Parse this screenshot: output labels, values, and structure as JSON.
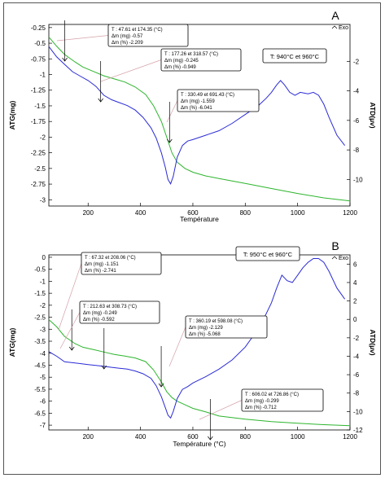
{
  "chart_data": [
    {
      "type": "line",
      "panel_label": "A",
      "legend_label": "Exo",
      "xlabel": "Température",
      "ylabel": "ATG(mg)",
      "y2label": "ATD(µv)",
      "xlim": [
        50,
        1200
      ],
      "ylim": [
        -3.1,
        -0.2
      ],
      "y2lim": [
        -11.8,
        0.5
      ],
      "x_ticks": [
        200,
        400,
        600,
        800,
        1000,
        1200
      ],
      "y_ticks": [
        -0.25,
        -0.5,
        -0.75,
        -1,
        -1.25,
        -1.5,
        -1.75,
        -2,
        -2.25,
        -2.5,
        -2.75,
        -3
      ],
      "y2_ticks": [
        -2,
        -4,
        -6,
        -8,
        -10
      ],
      "colors": {
        "tg": "#2db52d",
        "dta": "#2b2bd6",
        "annot": "#d4a0a8",
        "axis": "#000000"
      },
      "series": [
        {
          "key": "tg",
          "x": [
            50,
            80,
            110,
            150,
            180,
            220,
            260,
            300,
            340,
            380,
            420,
            450,
            480,
            500,
            520,
            540,
            570,
            600,
            650,
            700,
            800,
            900,
            1000,
            1100,
            1200
          ],
          "y": [
            -0.4,
            -0.55,
            -0.68,
            -0.8,
            -0.88,
            -0.95,
            -1.02,
            -1.07,
            -1.12,
            -1.2,
            -1.32,
            -1.5,
            -1.75,
            -2.0,
            -2.25,
            -2.4,
            -2.5,
            -2.56,
            -2.62,
            -2.66,
            -2.74,
            -2.82,
            -2.9,
            -2.97,
            -3.02
          ]
        },
        {
          "key": "dta",
          "x": [
            50,
            80,
            110,
            140,
            170,
            200,
            230,
            260,
            290,
            320,
            350,
            380,
            410,
            440,
            460,
            480,
            495,
            505,
            515,
            525,
            540,
            560,
            580,
            600,
            650,
            700,
            750,
            800,
            850,
            880,
            900,
            920,
            935,
            950,
            970,
            990,
            1010,
            1040,
            1060,
            1080,
            1100,
            1120,
            1150,
            1180
          ],
          "y": [
            -1.0,
            -1.7,
            -2.2,
            -2.7,
            -3.0,
            -3.3,
            -3.7,
            -4.3,
            -4.6,
            -4.8,
            -5.0,
            -5.3,
            -5.8,
            -6.5,
            -7.2,
            -8.2,
            -9.2,
            -10.0,
            -10.3,
            -9.8,
            -8.5,
            -7.7,
            -7.4,
            -7.3,
            -7.0,
            -6.7,
            -6.2,
            -5.6,
            -5.0,
            -4.5,
            -4.1,
            -3.6,
            -3.3,
            -3.6,
            -4.1,
            -4.3,
            -4.1,
            -4.2,
            -4.1,
            -4.3,
            -4.9,
            -5.8,
            -7.0,
            -7.7
          ]
        }
      ],
      "annotations": [
        {
          "lines": [
            "T : 47.61 et 174.35 (°C)",
            "Δm (mg) -0.57",
            "Δm (%) -2.209"
          ],
          "step": [
            47.61,
            174.35
          ]
        },
        {
          "lines": [
            "T : 177.26 et 318.57 (°C)",
            "Δm (mg) -0.245",
            "Δm (%) -0.949"
          ],
          "step": [
            177.26,
            318.57
          ]
        },
        {
          "lines": [
            "T : 330.49 et 691.43 (°C)",
            "Δm (mg) -1.559",
            "Δm (%) -6.041"
          ],
          "step": [
            330.49,
            691.43
          ]
        }
      ],
      "note": "T: 940°C et 960°C"
    },
    {
      "type": "line",
      "panel_label": "B",
      "legend_label": "Exo",
      "xlabel": "Température (°C)",
      "ylabel": "ATG(mg)",
      "y2label": "ATD(µv)",
      "xlim": [
        50,
        1200
      ],
      "ylim": [
        -7.2,
        0.1
      ],
      "y2lim": [
        -12,
        7
      ],
      "x_ticks": [
        200,
        400,
        600,
        800,
        1000,
        1200
      ],
      "y_ticks": [
        0,
        -0.5,
        -1,
        -1.5,
        -2,
        -2.5,
        -3,
        -3.5,
        -4,
        -4.5,
        -5,
        -5.5,
        -6,
        -6.5,
        -7
      ],
      "y2_ticks": [
        6,
        4,
        2,
        0,
        -2,
        -4,
        -6,
        -8,
        -10,
        -12
      ],
      "colors": {
        "tg": "#2db52d",
        "dta": "#2b2bd6",
        "annot": "#d4a0a8",
        "axis": "#000000"
      },
      "series": [
        {
          "key": "tg",
          "x": [
            50,
            80,
            110,
            150,
            180,
            200,
            220,
            260,
            300,
            340,
            380,
            420,
            450,
            480,
            500,
            520,
            540,
            570,
            600,
            650,
            700,
            800,
            900,
            1000,
            1100,
            1200
          ],
          "y": [
            -2.6,
            -2.9,
            -3.3,
            -3.6,
            -3.75,
            -3.8,
            -3.85,
            -3.95,
            -4.05,
            -4.12,
            -4.2,
            -4.35,
            -4.7,
            -5.2,
            -5.6,
            -5.85,
            -6.0,
            -6.15,
            -6.3,
            -6.45,
            -6.62,
            -6.75,
            -6.85,
            -6.92,
            -6.98,
            -7.02
          ]
        },
        {
          "key": "dta",
          "x": [
            50,
            80,
            110,
            140,
            170,
            200,
            230,
            260,
            290,
            320,
            350,
            380,
            410,
            440,
            460,
            480,
            495,
            505,
            515,
            525,
            540,
            560,
            580,
            600,
            650,
            700,
            750,
            800,
            850,
            880,
            900,
            920,
            940,
            960,
            980,
            1000,
            1020,
            1040,
            1060,
            1080,
            1100,
            1120,
            1150,
            1180
          ],
          "y": [
            -3.5,
            -4.0,
            -4.6,
            -4.7,
            -4.8,
            -4.9,
            -5.0,
            -5.1,
            -5.2,
            -5.3,
            -5.4,
            -5.6,
            -5.9,
            -6.4,
            -7.2,
            -8.4,
            -9.6,
            -10.4,
            -10.7,
            -10.0,
            -8.6,
            -7.6,
            -7.3,
            -6.9,
            -6.2,
            -5.4,
            -4.4,
            -3.0,
            -1.0,
            0.6,
            1.8,
            3.4,
            4.8,
            4.2,
            4.0,
            4.8,
            5.6,
            6.2,
            6.6,
            6.6,
            6.2,
            5.2,
            3.4,
            2.2
          ]
        }
      ],
      "annotations": [
        {
          "lines": [
            "T : 67.32 et 208.06 (°C)",
            "Δm (mg) -1.151",
            "Δm (%) -2.741"
          ],
          "step": [
            67.32,
            208.06
          ]
        },
        {
          "lines": [
            "T : 212.63 et 308.73 (°C)",
            "Δm (mg) -0.249",
            "Δm (%) -0.592"
          ],
          "step": [
            212.63,
            308.73
          ]
        },
        {
          "lines": [
            "T : 360.19 et 598.08 (°C)",
            "Δm (mg) -2.129",
            "Δm (%) -5.068"
          ],
          "step": [
            360.19,
            598.08
          ]
        },
        {
          "lines": [
            "T : 606.02 et 726.86 (°C)",
            "Δm (mg) -0.299",
            "Δm (%) -0.712"
          ],
          "step": [
            606.02,
            726.86
          ]
        }
      ],
      "note": "T: 950°C et 960°C"
    }
  ]
}
